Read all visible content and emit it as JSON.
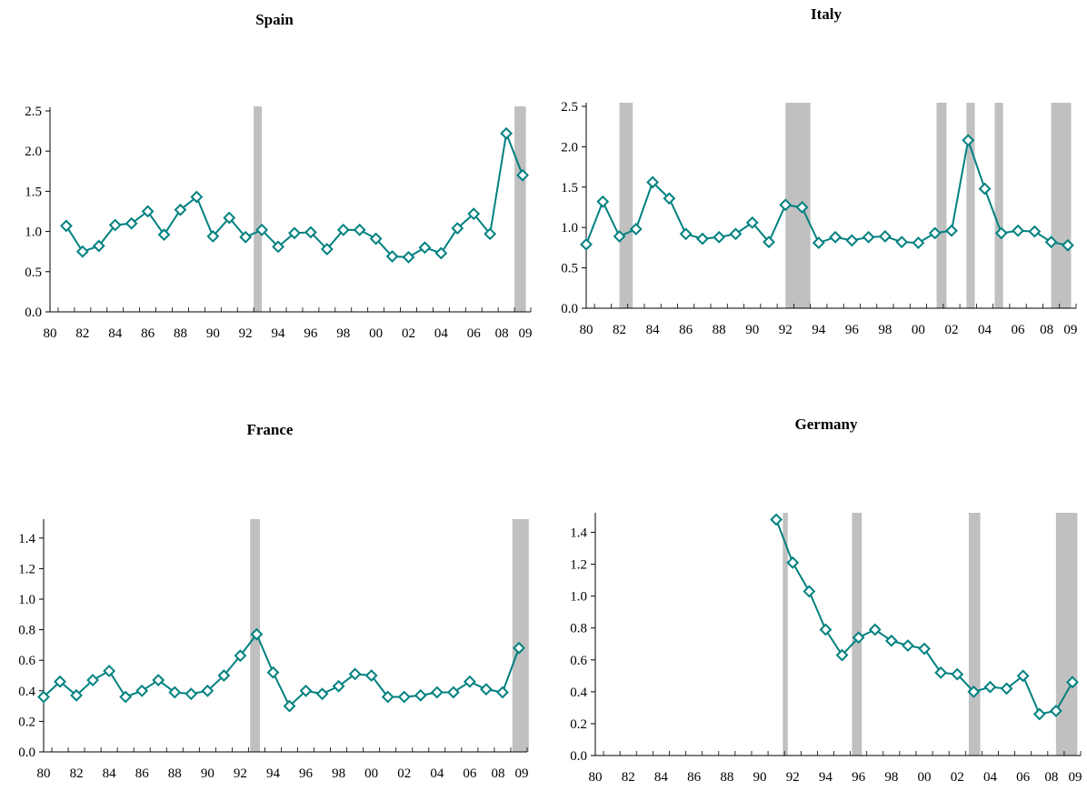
{
  "chart_data": [
    {
      "type": "line",
      "title": "Spain",
      "x_tick_labels": [
        "80",
        "82",
        "84",
        "86",
        "88",
        "90",
        "92",
        "94",
        "96",
        "98",
        "00",
        "02",
        "04",
        "06",
        "08",
        "09"
      ],
      "x_tick_years": [
        1980,
        1982,
        1984,
        1986,
        1988,
        1990,
        1992,
        1994,
        1996,
        1998,
        2000,
        2002,
        2004,
        2006,
        2008,
        2009
      ],
      "xlim": [
        1980,
        2009.5
      ],
      "ylim": [
        0,
        2.5
      ],
      "y_ticks": [
        "0.0",
        "0.5",
        "1.0",
        "1.5",
        "2.0",
        "2.5"
      ],
      "y_tick_values": [
        0,
        0.5,
        1.0,
        1.5,
        2.0,
        2.5
      ],
      "series": [
        {
          "x": [
            1981,
            1982,
            1983,
            1984,
            1985,
            1986,
            1987,
            1988,
            1989,
            1990,
            1991,
            1992,
            1993,
            1994,
            1995,
            1996,
            1997,
            1998,
            1999,
            2000,
            2001,
            2002,
            2003,
            2004,
            2005,
            2006,
            2007,
            2008,
            2009
          ],
          "y": [
            1.07,
            0.75,
            0.82,
            1.08,
            1.1,
            1.25,
            0.96,
            1.27,
            1.43,
            0.94,
            1.17,
            0.93,
            1.02,
            0.81,
            0.98,
            0.99,
            0.78,
            1.02,
            1.02,
            0.91,
            0.69,
            0.68,
            0.8,
            0.73,
            1.04,
            1.22,
            0.97,
            2.22,
            1.7
          ]
        }
      ],
      "shaded_periods": [
        [
          1992.5,
          1993.0
        ],
        [
          2008.5,
          2009.2
        ]
      ],
      "line_color": "#008080",
      "shade_color": "#c0c0c0"
    },
    {
      "type": "line",
      "title": "Italy",
      "x_tick_labels": [
        "80",
        "82",
        "84",
        "86",
        "88",
        "90",
        "92",
        "94",
        "96",
        "98",
        "00",
        "02",
        "04",
        "06",
        "08",
        "09"
      ],
      "x_tick_years": [
        1980,
        1982,
        1984,
        1986,
        1988,
        1990,
        1992,
        1994,
        1996,
        1998,
        2000,
        2002,
        2004,
        2006,
        2008,
        2009
      ],
      "xlim": [
        1980,
        2009.5
      ],
      "ylim": [
        0,
        2.5
      ],
      "y_ticks": [
        "0.0",
        "0.5",
        "1.0",
        "1.5",
        "2.0",
        "2.5"
      ],
      "y_tick_values": [
        0,
        0.5,
        1.0,
        1.5,
        2.0,
        2.5
      ],
      "series": [
        {
          "x": [
            1980,
            1981,
            1982,
            1983,
            1984,
            1985,
            1986,
            1987,
            1988,
            1989,
            1990,
            1991,
            1992,
            1993,
            1994,
            1995,
            1996,
            1997,
            1998,
            1999,
            2000,
            2001,
            2002,
            2003,
            2004,
            2005,
            2006,
            2007,
            2008,
            2009
          ],
          "y": [
            0.79,
            1.32,
            0.89,
            0.98,
            1.56,
            1.36,
            0.92,
            0.86,
            0.88,
            0.92,
            1.06,
            0.82,
            1.28,
            1.25,
            0.81,
            0.88,
            0.84,
            0.88,
            0.89,
            0.82,
            0.81,
            0.93,
            0.96,
            2.08,
            1.48,
            0.93,
            0.96,
            0.95,
            0.82,
            0.78
          ]
        }
      ],
      "shaded_periods": [
        [
          1982.0,
          1982.8
        ],
        [
          1992.0,
          1993.5
        ],
        [
          2001.1,
          2001.7
        ],
        [
          2002.9,
          2003.4
        ],
        [
          2004.6,
          2005.1
        ],
        [
          2008.0,
          2009.2
        ]
      ],
      "line_color": "#008080",
      "shade_color": "#c0c0c0"
    },
    {
      "type": "line",
      "title": "France",
      "x_tick_labels": [
        "80",
        "82",
        "84",
        "86",
        "88",
        "90",
        "92",
        "94",
        "96",
        "98",
        "00",
        "02",
        "04",
        "06",
        "08",
        "09"
      ],
      "x_tick_years": [
        1980,
        1982,
        1984,
        1986,
        1988,
        1990,
        1992,
        1994,
        1996,
        1998,
        2000,
        2002,
        2004,
        2006,
        2008,
        2009
      ],
      "xlim": [
        1980,
        2009.5
      ],
      "ylim": [
        0,
        1.5
      ],
      "y_ticks": [
        "0.0",
        "0.2",
        "0.4",
        "0.6",
        "0.8",
        "1.0",
        "1.2",
        "1.4"
      ],
      "y_tick_values": [
        0,
        0.2,
        0.4,
        0.6,
        0.8,
        1.0,
        1.2,
        1.4
      ],
      "series": [
        {
          "x": [
            1980,
            1981,
            1982,
            1983,
            1984,
            1985,
            1986,
            1987,
            1988,
            1989,
            1990,
            1991,
            1992,
            1993,
            1994,
            1995,
            1996,
            1997,
            1998,
            1999,
            2000,
            2001,
            2002,
            2003,
            2004,
            2005,
            2006,
            2007,
            2008,
            2009
          ],
          "y": [
            0.36,
            0.46,
            0.37,
            0.47,
            0.53,
            0.36,
            0.4,
            0.47,
            0.39,
            0.38,
            0.4,
            0.5,
            0.63,
            0.77,
            0.52,
            0.3,
            0.4,
            0.38,
            0.43,
            0.51,
            0.5,
            0.36,
            0.36,
            0.37,
            0.39,
            0.39,
            0.46,
            0.41,
            0.39,
            0.68
          ]
        }
      ],
      "shaded_periods": [
        [
          1992.6,
          1993.2
        ],
        [
          2008.6,
          2009.6
        ]
      ],
      "line_color": "#008080",
      "shade_color": "#c0c0c0"
    },
    {
      "type": "line",
      "title": "Germany",
      "x_tick_labels": [
        "80",
        "82",
        "84",
        "86",
        "88",
        "90",
        "92",
        "94",
        "96",
        "98",
        "00",
        "02",
        "04",
        "06",
        "08",
        "09"
      ],
      "x_tick_years": [
        1980,
        1982,
        1984,
        1986,
        1988,
        1990,
        1992,
        1994,
        1996,
        1998,
        2000,
        2002,
        2004,
        2006,
        2008,
        2009
      ],
      "xlim": [
        1980,
        2009.5
      ],
      "ylim": [
        0,
        1.5
      ],
      "y_ticks": [
        "0.0",
        "0.2",
        "0.4",
        "0.6",
        "0.8",
        "1.0",
        "1.2",
        "1.4"
      ],
      "y_tick_values": [
        0,
        0.2,
        0.4,
        0.6,
        0.8,
        1.0,
        1.2,
        1.4
      ],
      "series": [
        {
          "x": [
            1991,
            1992,
            1993,
            1994,
            1995,
            1996,
            1997,
            1998,
            1999,
            2000,
            2001,
            2002,
            2003,
            2004,
            2005,
            2006,
            2007,
            2008,
            2009
          ],
          "y": [
            1.48,
            1.21,
            1.03,
            0.79,
            0.63,
            0.74,
            0.79,
            0.72,
            0.69,
            0.67,
            0.52,
            0.51,
            0.4,
            0.43,
            0.42,
            0.5,
            0.26,
            0.28,
            0.46
          ]
        }
      ],
      "shaded_periods": [
        [
          1991.4,
          1991.7
        ],
        [
          1995.6,
          1996.2
        ],
        [
          2002.7,
          2003.4
        ],
        [
          2008.0,
          2009.3
        ]
      ],
      "line_color": "#008080",
      "shade_color": "#c0c0c0"
    }
  ]
}
